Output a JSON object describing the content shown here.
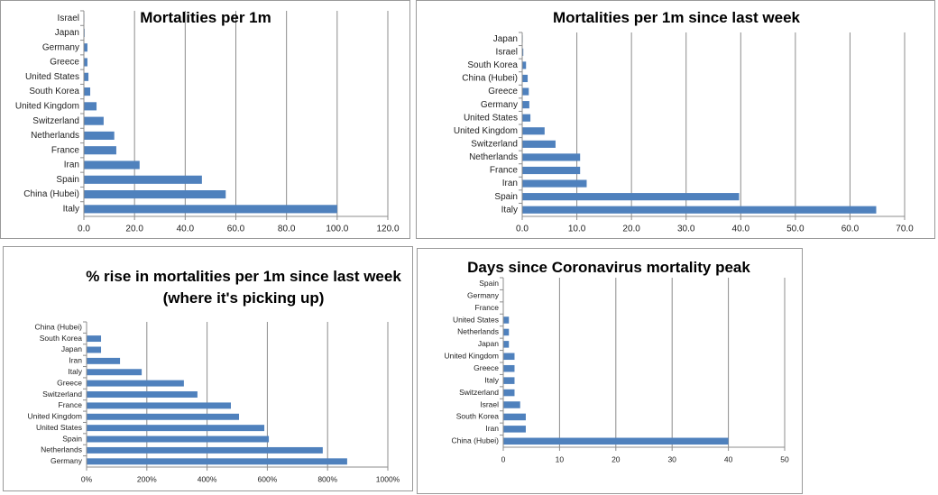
{
  "chart_data": [
    {
      "type": "bar",
      "orientation": "horizontal",
      "title": "Mortalities per 1m",
      "categories": [
        "Israel",
        "Japan",
        "Germany",
        "Greece",
        "United States",
        "South Korea",
        "United Kingdom",
        "Switzerland",
        "Netherlands",
        "France",
        "Iran",
        "Spain",
        "China (Hubei)",
        "Italy"
      ],
      "values": [
        0.2,
        0.3,
        1.4,
        1.4,
        1.8,
        2.5,
        5,
        7.8,
        12,
        12.8,
        22,
        46.6,
        56,
        100
      ],
      "color": "#4f81bd",
      "xlim": [
        0,
        120
      ],
      "xticks": [
        {
          "value": 0,
          "label": "0.0"
        },
        {
          "value": 20,
          "label": "20.0"
        },
        {
          "value": 40,
          "label": "40.0"
        },
        {
          "value": 60,
          "label": "60.0"
        },
        {
          "value": 80,
          "label": "80.0"
        },
        {
          "value": 100,
          "label": "100.0"
        },
        {
          "value": 120,
          "label": "120.0"
        }
      ],
      "grid": true
    },
    {
      "type": "bar",
      "orientation": "horizontal",
      "title": "Mortalities per 1m since last week",
      "categories": [
        "Japan",
        "Israel",
        "South Korea",
        "China (Hubei)",
        "Greece",
        "Germany",
        "United States",
        "United Kingdom",
        "Switzerland",
        "Netherlands",
        "France",
        "Iran",
        "Spain",
        "Italy"
      ],
      "values": [
        0.1,
        0.2,
        0.7,
        1,
        1.2,
        1.3,
        1.5,
        4.1,
        6.1,
        10.6,
        10.6,
        11.8,
        39.7,
        64.8
      ],
      "color": "#4f81bd",
      "xlim": [
        0,
        70
      ],
      "xticks": [
        {
          "value": 0,
          "label": "0.0"
        },
        {
          "value": 10,
          "label": "10.0"
        },
        {
          "value": 20,
          "label": "20.0"
        },
        {
          "value": 30,
          "label": "30.0"
        },
        {
          "value": 40,
          "label": "40.0"
        },
        {
          "value": 50,
          "label": "50.0"
        },
        {
          "value": 60,
          "label": "60.0"
        },
        {
          "value": 70,
          "label": "70.0"
        }
      ],
      "grid": true
    },
    {
      "type": "bar",
      "orientation": "horizontal",
      "title": "% rise in mortalities per 1m since last week (where it's picking up)",
      "categories": [
        "China (Hubei)",
        "South Korea",
        "Japan",
        "Iran",
        "Italy",
        "Greece",
        "Switzerland",
        "France",
        "United Kingdom",
        "United States",
        "Spain",
        "Netherlands",
        "Germany"
      ],
      "values": [
        0,
        48,
        48,
        111,
        183,
        323,
        368,
        479,
        506,
        590,
        605,
        784,
        865
      ],
      "color": "#4f81bd",
      "xlim": [
        0,
        1000
      ],
      "xticks": [
        {
          "value": 0,
          "label": "0%"
        },
        {
          "value": 200,
          "label": "200%"
        },
        {
          "value": 400,
          "label": "400%"
        },
        {
          "value": 600,
          "label": "600%"
        },
        {
          "value": 800,
          "label": "800%"
        },
        {
          "value": 1000,
          "label": "1000%"
        }
      ],
      "grid": true
    },
    {
      "type": "bar",
      "orientation": "horizontal",
      "title": "Days since Coronavirus mortality peak",
      "categories": [
        "Spain",
        "Germany",
        "France",
        "United States",
        "Netherlands",
        "Japan",
        "United Kingdom",
        "Greece",
        "Italy",
        "Switzerland",
        "Israel",
        "South Korea",
        "Iran",
        "China (Hubei)"
      ],
      "values": [
        0,
        0,
        0,
        1,
        1,
        1,
        2,
        2,
        2,
        2,
        3,
        4,
        4,
        40
      ],
      "color": "#4f81bd",
      "xlim": [
        0,
        50
      ],
      "xticks": [
        0,
        10,
        20,
        30,
        40,
        50
      ],
      "grid": true
    }
  ]
}
